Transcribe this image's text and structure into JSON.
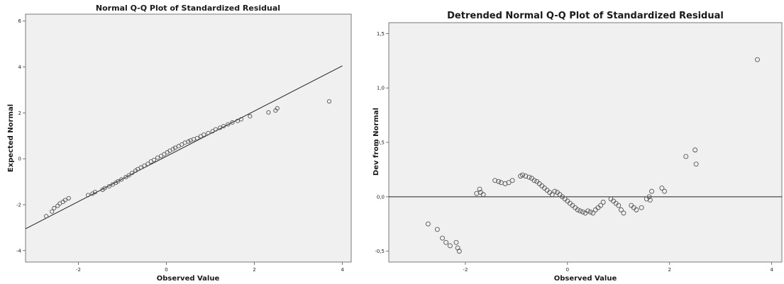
{
  "chart_data": [
    {
      "type": "scatter",
      "title": "Normal Q-Q Plot of Standardized Residual",
      "xlabel": "Observed Value",
      "ylabel": "Expected Normal",
      "xlim": [
        -3.2,
        4.2
      ],
      "ylim": [
        -4.5,
        6.3
      ],
      "xticks": [
        -2,
        0,
        2,
        4
      ],
      "yticks": [
        -4,
        -2,
        0,
        2,
        4,
        6
      ],
      "reference_line": {
        "x": [
          -3.2,
          4.0
        ],
        "y": [
          -3.05,
          4.05
        ]
      },
      "grid": false,
      "x": [
        -2.73,
        -2.6,
        -2.55,
        -2.47,
        -2.42,
        -2.35,
        -2.3,
        -2.22,
        -1.78,
        -1.68,
        -1.62,
        -1.45,
        -1.4,
        -1.3,
        -1.22,
        -1.15,
        -1.1,
        -1.02,
        -0.92,
        -0.85,
        -0.78,
        -0.7,
        -0.65,
        -0.58,
        -0.5,
        -0.42,
        -0.35,
        -0.28,
        -0.2,
        -0.12,
        -0.05,
        0.02,
        0.08,
        0.15,
        0.2,
        0.28,
        0.35,
        0.42,
        0.5,
        0.55,
        0.62,
        0.7,
        0.78,
        0.85,
        0.95,
        1.05,
        1.12,
        1.22,
        1.3,
        1.4,
        1.5,
        1.62,
        1.7,
        1.9,
        2.32,
        2.48,
        2.52,
        3.7
      ],
      "y": [
        -2.5,
        -2.3,
        -2.15,
        -2.05,
        -1.95,
        -1.88,
        -1.8,
        -1.72,
        -1.58,
        -1.52,
        -1.45,
        -1.35,
        -1.28,
        -1.2,
        -1.12,
        -1.05,
        -0.98,
        -0.9,
        -0.8,
        -0.72,
        -0.62,
        -0.52,
        -0.45,
        -0.38,
        -0.3,
        -0.22,
        -0.12,
        -0.05,
        0.05,
        0.12,
        0.2,
        0.28,
        0.35,
        0.42,
        0.48,
        0.55,
        0.62,
        0.7,
        0.75,
        0.8,
        0.85,
        0.9,
        0.98,
        1.05,
        1.12,
        1.2,
        1.28,
        1.35,
        1.42,
        1.5,
        1.58,
        1.65,
        1.72,
        1.85,
        2.02,
        2.1,
        2.2,
        2.5
      ]
    },
    {
      "type": "scatter",
      "title": "Detrended Normal Q-Q Plot of Standardized Residual",
      "xlabel": "Observed Value",
      "ylabel": "Dev from Normal",
      "xlim": [
        -3.5,
        4.2
      ],
      "ylim": [
        -0.6,
        1.6
      ],
      "xticks": [
        -2,
        0,
        2,
        4
      ],
      "yticks": [
        -0.5,
        0.0,
        0.5,
        1.0,
        1.5
      ],
      "xticklabels": [
        "-2",
        "0",
        "2",
        "4"
      ],
      "yticklabels": [
        "-0,5",
        "0,0",
        "0,5",
        "1,0",
        "1,5"
      ],
      "reference_line": {
        "y": 0
      },
      "grid": false,
      "x": [
        -2.73,
        -2.55,
        -2.45,
        -2.38,
        -2.3,
        -2.18,
        -2.15,
        -2.12,
        -1.78,
        -1.72,
        -1.7,
        -1.65,
        -1.42,
        -1.35,
        -1.3,
        -1.22,
        -1.15,
        -1.08,
        -0.92,
        -0.88,
        -0.82,
        -0.75,
        -0.7,
        -0.65,
        -0.6,
        -0.55,
        -0.5,
        -0.45,
        -0.4,
        -0.35,
        -0.3,
        -0.25,
        -0.2,
        -0.15,
        -0.1,
        -0.05,
        0.0,
        0.05,
        0.1,
        0.15,
        0.2,
        0.25,
        0.3,
        0.35,
        0.4,
        0.45,
        0.5,
        0.55,
        0.6,
        0.65,
        0.7,
        0.85,
        0.9,
        0.95,
        1.0,
        1.05,
        1.1,
        1.25,
        1.3,
        1.35,
        1.45,
        1.55,
        1.6,
        1.62,
        1.65,
        1.85,
        1.9,
        2.32,
        2.5,
        2.52,
        3.72
      ],
      "y": [
        -0.25,
        -0.3,
        -0.38,
        -0.42,
        -0.45,
        -0.42,
        -0.47,
        -0.5,
        0.03,
        0.07,
        0.04,
        0.02,
        0.15,
        0.14,
        0.13,
        0.12,
        0.13,
        0.15,
        0.19,
        0.2,
        0.19,
        0.18,
        0.17,
        0.15,
        0.14,
        0.12,
        0.1,
        0.08,
        0.06,
        0.04,
        0.02,
        0.05,
        0.04,
        0.02,
        0.0,
        -0.02,
        -0.04,
        -0.06,
        -0.08,
        -0.1,
        -0.12,
        -0.13,
        -0.14,
        -0.15,
        -0.13,
        -0.14,
        -0.15,
        -0.12,
        -0.1,
        -0.08,
        -0.05,
        -0.02,
        -0.04,
        -0.06,
        -0.08,
        -0.12,
        -0.15,
        -0.08,
        -0.1,
        -0.12,
        -0.1,
        -0.02,
        0.0,
        -0.03,
        0.05,
        0.08,
        0.05,
        0.37,
        0.43,
        0.3,
        1.26
      ]
    }
  ]
}
